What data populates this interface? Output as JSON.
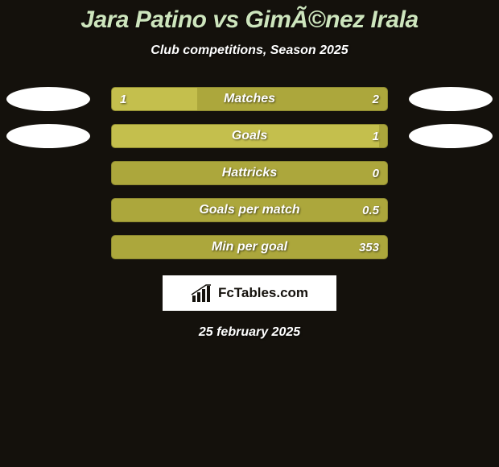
{
  "background_color": "#14110c",
  "title": {
    "text": "Jara Patino vs GimÃ©nez Irala",
    "color": "#cde5bd",
    "fontsize": 30
  },
  "subtitle": {
    "text": "Club competitions, Season 2025",
    "color": "#ffffff",
    "fontsize": 16
  },
  "bar_track_color": "#aca73c",
  "bar_track_border": "#8e8a31",
  "bar_fill_color": "#c4bf4d",
  "rows": [
    {
      "label": "Matches",
      "left_val": "1",
      "right_val": "2",
      "fill_pct": 31,
      "show_left_ellipse": true,
      "show_right_ellipse": true
    },
    {
      "label": "Goals",
      "left_val": "",
      "right_val": "1",
      "fill_pct": 97,
      "show_left_ellipse": true,
      "show_right_ellipse": true
    },
    {
      "label": "Hattricks",
      "left_val": "",
      "right_val": "0",
      "fill_pct": 0,
      "show_left_ellipse": false,
      "show_right_ellipse": false
    },
    {
      "label": "Goals per match",
      "left_val": "",
      "right_val": "0.5",
      "fill_pct": 0,
      "show_left_ellipse": false,
      "show_right_ellipse": false
    },
    {
      "label": "Min per goal",
      "left_val": "",
      "right_val": "353",
      "fill_pct": 0,
      "show_left_ellipse": false,
      "show_right_ellipse": false
    }
  ],
  "logo": {
    "text": "FcTables.com"
  },
  "date": {
    "text": "25 february 2025"
  }
}
